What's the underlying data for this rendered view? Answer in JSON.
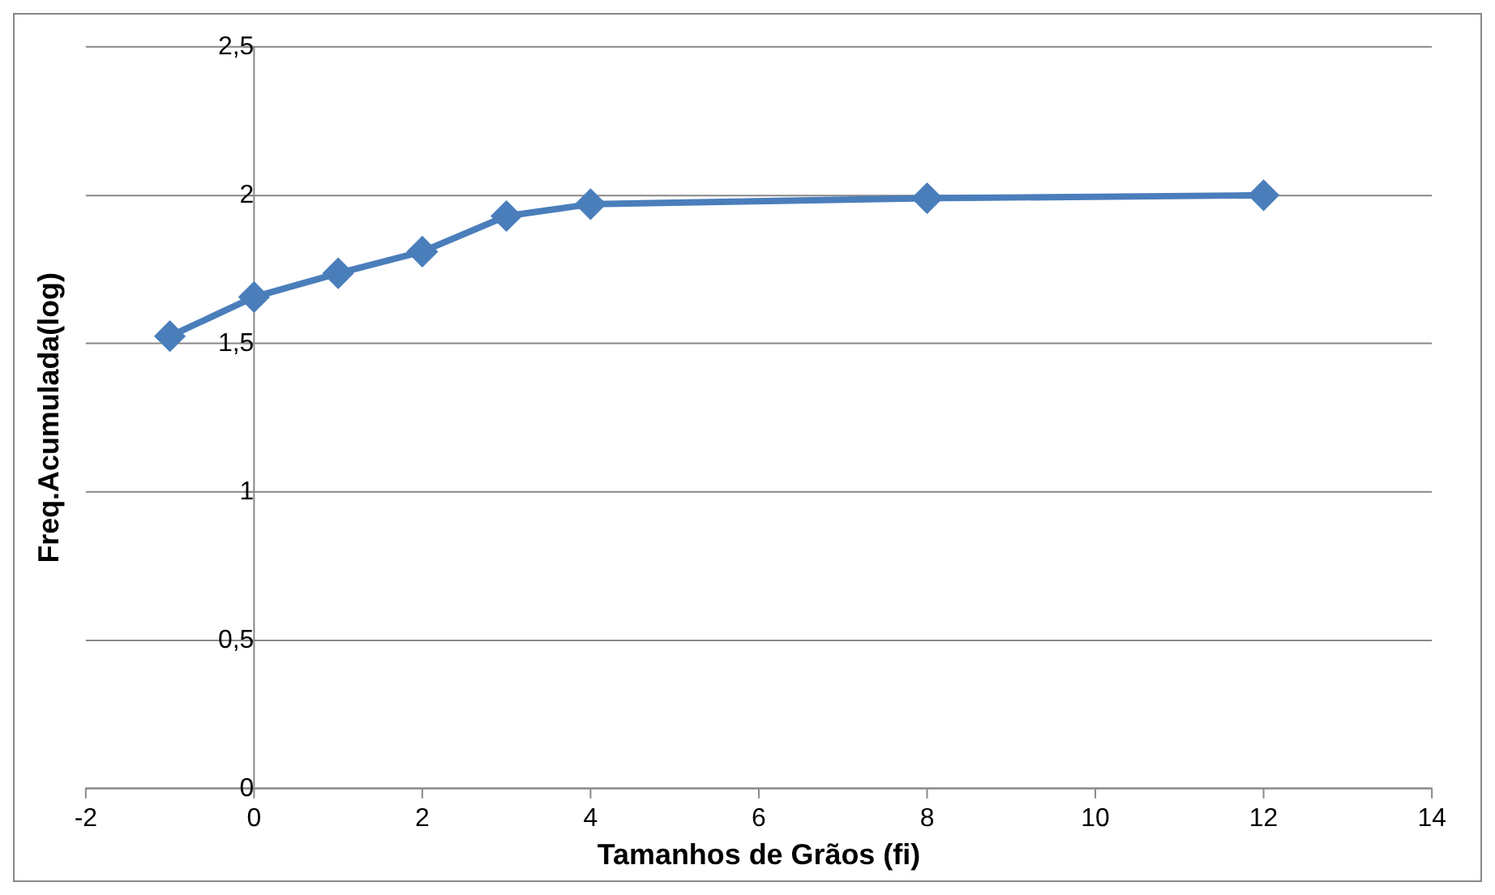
{
  "chart_data": {
    "type": "line",
    "xlabel": "Tamanhos de Grãos (fi)",
    "ylabel": "Freq.Acumulada(log)",
    "x": [
      -1,
      0,
      1,
      2,
      3,
      4,
      8,
      12
    ],
    "series": [
      {
        "color": "#4a7ebb",
        "values": [
          1.525,
          1.657,
          1.737,
          1.81,
          1.93,
          1.97,
          1.99,
          2.0
        ]
      }
    ],
    "xlim": [
      -2,
      14
    ],
    "xticks": [
      -2,
      0,
      2,
      4,
      6,
      8,
      10,
      12,
      14
    ],
    "ylim": [
      0,
      2.5
    ],
    "yticks": [
      {
        "value": 0,
        "label": "0"
      },
      {
        "value": 0.5,
        "label": "0,5"
      },
      {
        "value": 1,
        "label": "1"
      },
      {
        "value": 1.5,
        "label": "1,5"
      },
      {
        "value": 2,
        "label": "2"
      },
      {
        "value": 2.5,
        "label": "2,5"
      }
    ],
    "grid": "y",
    "legend": false,
    "marker": "diamond",
    "line_style": "solid"
  }
}
